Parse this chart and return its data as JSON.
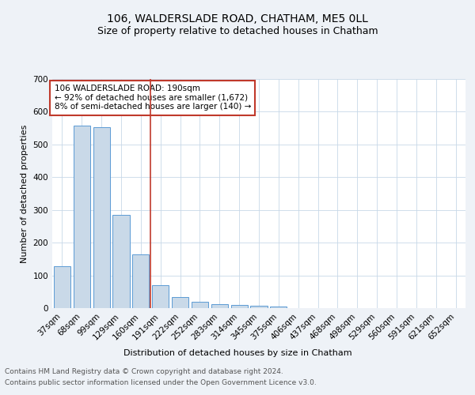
{
  "title1": "106, WALDERSLADE ROAD, CHATHAM, ME5 0LL",
  "title2": "Size of property relative to detached houses in Chatham",
  "xlabel": "Distribution of detached houses by size in Chatham",
  "ylabel": "Number of detached properties",
  "categories": [
    "37sqm",
    "68sqm",
    "99sqm",
    "129sqm",
    "160sqm",
    "191sqm",
    "222sqm",
    "252sqm",
    "283sqm",
    "314sqm",
    "345sqm",
    "375sqm",
    "406sqm",
    "437sqm",
    "468sqm",
    "498sqm",
    "529sqm",
    "560sqm",
    "591sqm",
    "621sqm",
    "652sqm"
  ],
  "values": [
    127,
    557,
    553,
    284,
    165,
    70,
    33,
    20,
    13,
    10,
    8,
    4,
    0,
    0,
    0,
    0,
    0,
    0,
    0,
    0,
    0
  ],
  "bar_color": "#c9d9e8",
  "bar_edge_color": "#5b9bd5",
  "vline_color": "#c0392b",
  "annotation_text": "106 WALDERSLADE ROAD: 190sqm\n← 92% of detached houses are smaller (1,672)\n8% of semi-detached houses are larger (140) →",
  "annotation_box_color": "#ffffff",
  "annotation_box_edge_color": "#c0392b",
  "ylim": [
    0,
    700
  ],
  "yticks": [
    0,
    100,
    200,
    300,
    400,
    500,
    600,
    700
  ],
  "footnote1": "Contains HM Land Registry data © Crown copyright and database right 2024.",
  "footnote2": "Contains public sector information licensed under the Open Government Licence v3.0.",
  "background_color": "#eef2f7",
  "plot_background": "#ffffff",
  "grid_color": "#c8d8e8",
  "title1_fontsize": 10,
  "title2_fontsize": 9,
  "axis_label_fontsize": 8,
  "tick_fontsize": 7.5,
  "footnote_fontsize": 6.5,
  "annotation_fontsize": 7.5
}
